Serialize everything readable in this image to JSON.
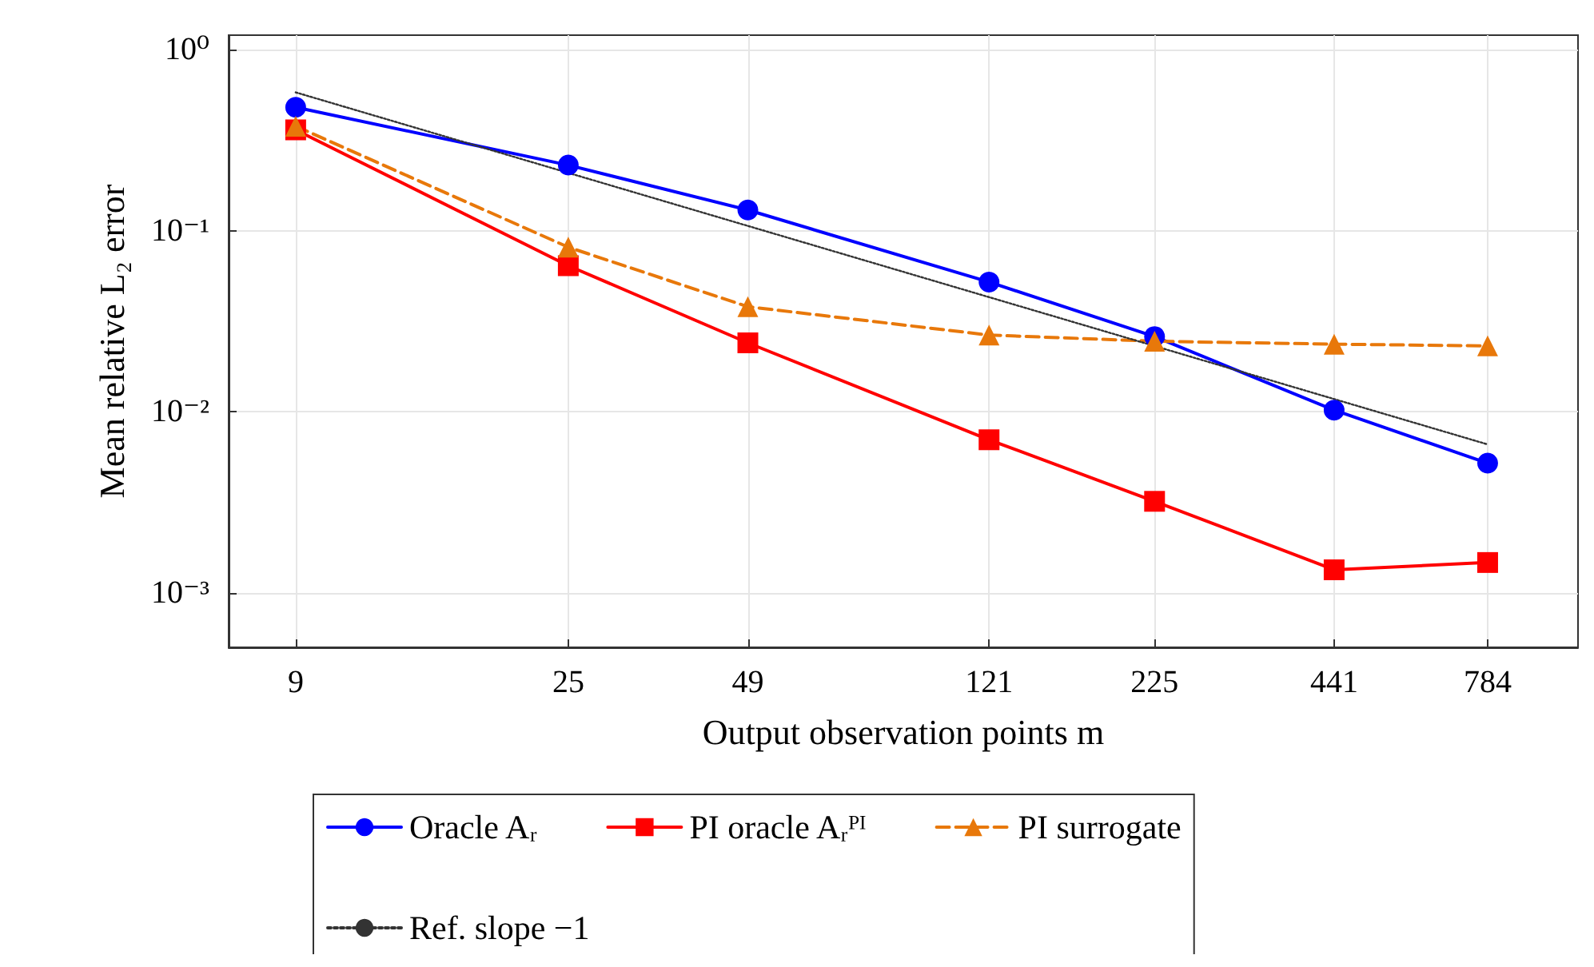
{
  "chart_data": {
    "type": "line",
    "xlabel": "Output observation points m",
    "ylabel": "Mean relative L₂ error",
    "log": "xy",
    "xlim": [
      7,
      1100
    ],
    "xticks": [
      9,
      25,
      49,
      121,
      225,
      441,
      784
    ],
    "ylim": [
      0.0005,
      1.2
    ],
    "yticks": [
      {
        "value": 0.001,
        "label": "10⁻³"
      },
      {
        "value": 0.01,
        "label": "10⁻²"
      },
      {
        "value": 0.1,
        "label": "10⁻¹"
      },
      {
        "value": 1,
        "label": "10⁰"
      }
    ],
    "grid": true,
    "legend": "bottom",
    "x": [
      9,
      25,
      49,
      121,
      225,
      441,
      784
    ],
    "series": [
      {
        "name": "Oracle Aᵣ",
        "color": "#0000ff",
        "marker": "circle",
        "line_style": "solid",
        "values": [
          0.48,
          0.23,
          0.13,
          0.052,
          0.026,
          0.0102,
          0.0052
        ]
      },
      {
        "name": "PI oracle Aᵣᴾᴵ",
        "color": "#ff0000",
        "marker": "square",
        "line_style": "solid",
        "values": [
          0.36,
          0.064,
          0.024,
          0.007,
          0.0032,
          0.00134,
          0.00147
        ]
      },
      {
        "name": "PI surrogate",
        "color": "#e8780a",
        "marker": "triangle",
        "line_style": "dashed",
        "values": [
          0.377,
          0.081,
          0.038,
          0.0265,
          0.0245,
          0.0236,
          0.0231
        ]
      },
      {
        "name": "Ref. slope −1",
        "color": "#333333",
        "marker": "none",
        "line_style": "dotted",
        "x": [
          9,
          784
        ],
        "values": [
          0.58,
          0.0066
        ]
      }
    ]
  }
}
